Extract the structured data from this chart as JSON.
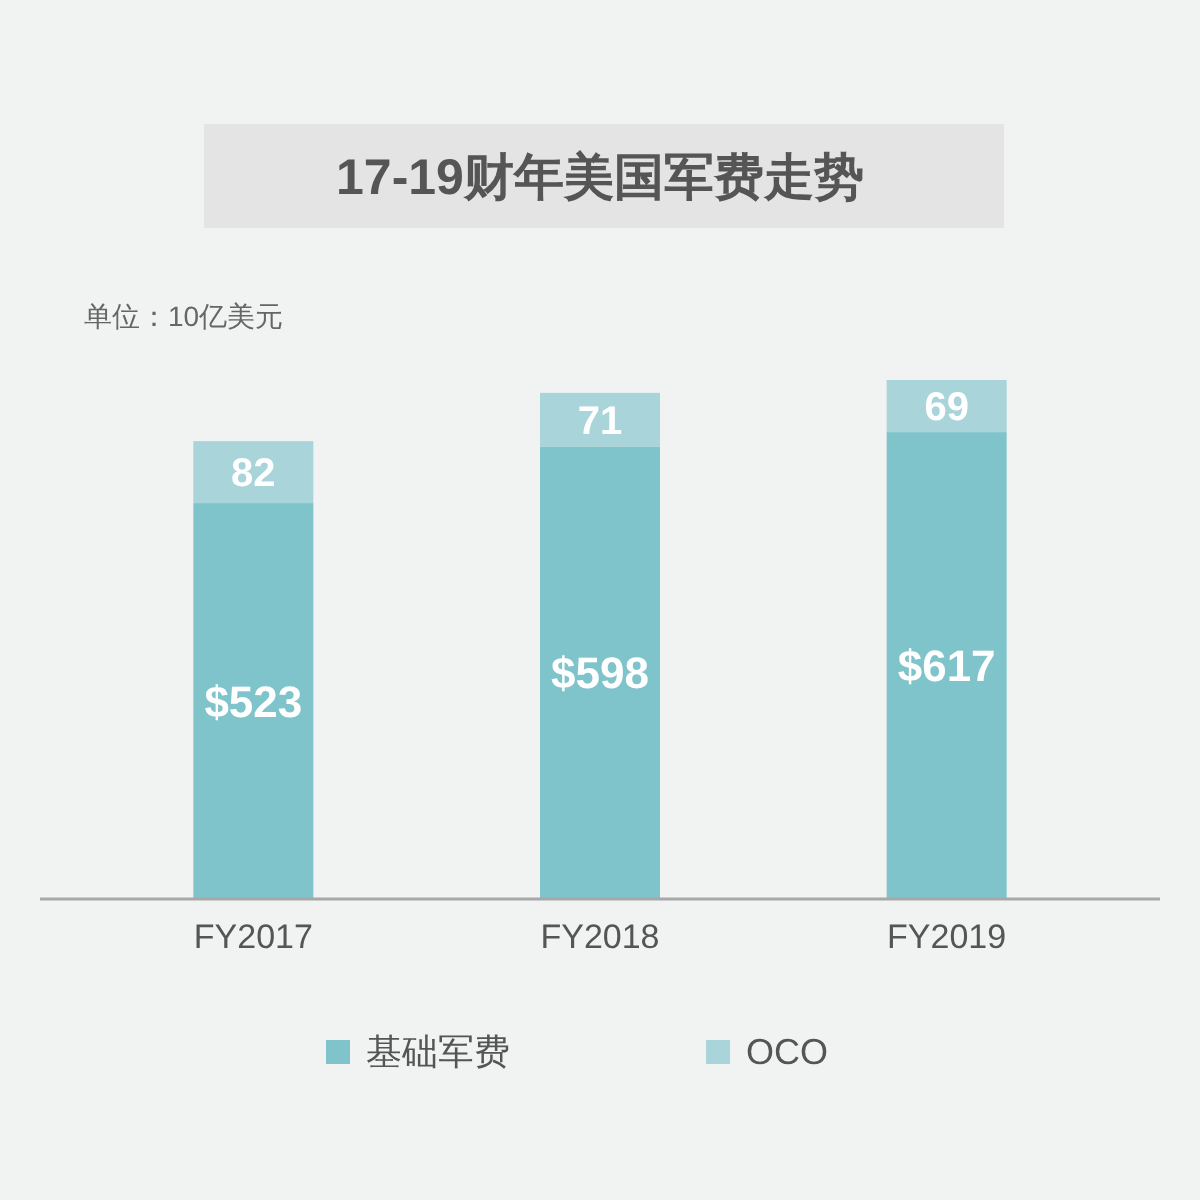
{
  "chart_data": {
    "type": "bar",
    "title": "17-19财年美国军费走势",
    "annotations": [
      "单位：10亿美元"
    ],
    "categories": [
      "FY2017",
      "FY2018",
      "FY2019"
    ],
    "stacked": true,
    "legend": "bottom",
    "series": [
      {
        "name": "基础军费",
        "color": "#7fc4cb",
        "values": [
          523,
          598,
          617
        ],
        "value_labels": [
          "$523",
          "$598",
          "$617"
        ]
      },
      {
        "name": "OCO",
        "color": "#a9d5da",
        "values": [
          82,
          71,
          69
        ],
        "value_labels": [
          "82",
          "71",
          "69"
        ]
      }
    ]
  }
}
